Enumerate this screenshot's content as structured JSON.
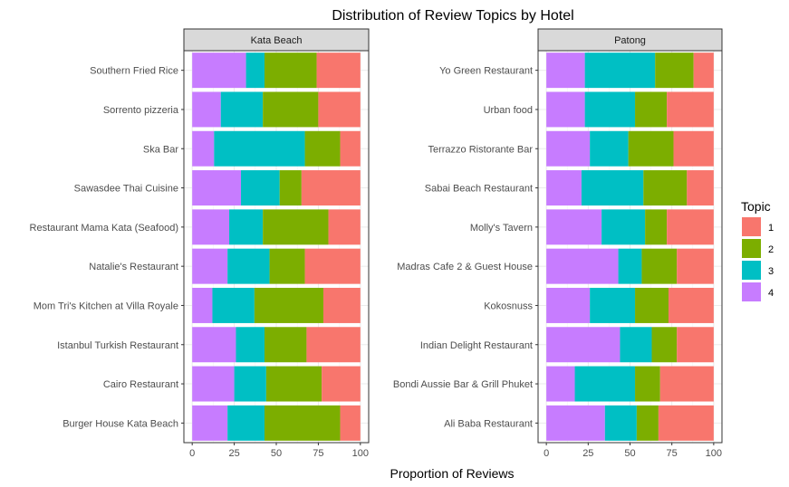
{
  "chart_data": {
    "type": "bar",
    "orientation": "horizontal",
    "stacked": true,
    "title": "Distribution of Review Topics by Hotel",
    "xlabel": "Proportion of Reviews",
    "ylabel": "",
    "xlim": [
      0,
      100
    ],
    "xticks": [
      "0",
      "25",
      "50",
      "75",
      "100"
    ],
    "grid": true,
    "legend": {
      "title": "Topic",
      "position": "right",
      "entries": [
        "1",
        "2",
        "3",
        "4"
      ]
    },
    "series_colors": {
      "1": "#F8766D",
      "2": "#7CAE00",
      "3": "#00BFC4",
      "4": "#C77CFF"
    },
    "stack_order_left_to_right": [
      "4",
      "3",
      "2",
      "1"
    ],
    "panels": [
      {
        "strip": "Kata Beach",
        "categories": [
          "Southern Fried Rice",
          "Sorrento pizzeria",
          "Ska Bar",
          "Sawasdee Thai Cuisine",
          "Restaurant Mama Kata (Seafood)",
          "Natalie's Restaurant",
          "Mom Tri's Kitchen at Villa Royale",
          "Istanbul Turkish Restaurant",
          "Cairo Restaurant",
          "Burger House Kata Beach"
        ],
        "series": [
          {
            "name": "4",
            "values": [
              32,
              17,
              13,
              29,
              22,
              21,
              12,
              26,
              25,
              21
            ]
          },
          {
            "name": "3",
            "values": [
              11,
              25,
              54,
              23,
              20,
              25,
              25,
              17,
              19,
              22
            ]
          },
          {
            "name": "2",
            "values": [
              31,
              33,
              21,
              13,
              39,
              21,
              41,
              25,
              33,
              45
            ]
          },
          {
            "name": "1",
            "values": [
              26,
              25,
              12,
              35,
              19,
              33,
              22,
              32,
              23,
              12
            ]
          }
        ]
      },
      {
        "strip": "Patong",
        "categories": [
          "Yo Green Restaurant",
          "Urban food",
          "Terrazzo Ristorante Bar",
          "Sabai Beach Restaurant",
          "Molly's Tavern",
          "Madras Cafe 2 & Guest House",
          "Kokosnuss",
          "Indian Delight Restaurant",
          "Bondi Aussie Bar & Grill Phuket",
          "Ali Baba Restaurant"
        ],
        "series": [
          {
            "name": "4",
            "values": [
              23,
              23,
              26,
              21,
              33,
              43,
              26,
              44,
              17,
              35
            ]
          },
          {
            "name": "3",
            "values": [
              42,
              30,
              23,
              37,
              26,
              14,
              27,
              19,
              36,
              19
            ]
          },
          {
            "name": "2",
            "values": [
              23,
              19,
              27,
              26,
              13,
              21,
              20,
              15,
              15,
              13
            ]
          },
          {
            "name": "1",
            "values": [
              12,
              28,
              24,
              16,
              28,
              22,
              27,
              22,
              32,
              33
            ]
          }
        ]
      }
    ]
  }
}
